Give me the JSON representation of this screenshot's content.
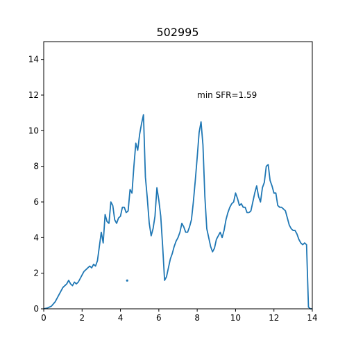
{
  "chart_data": {
    "type": "line",
    "title": "502995",
    "xlabel": "",
    "ylabel": "",
    "xlim": [
      0,
      14
    ],
    "ylim": [
      0,
      15
    ],
    "xticks": [
      "0",
      "2",
      "4",
      "6",
      "8",
      "10",
      "12",
      "14"
    ],
    "yticks": [
      "0",
      "2",
      "4",
      "6",
      "8",
      "10",
      "12",
      "14"
    ],
    "grid": false,
    "annotation": {
      "text": "min SFR=1.59",
      "x": 8.0,
      "y": 12.0
    },
    "marker_point": {
      "x": 4.35,
      "y": 1.59
    },
    "line_color": "#1f77b4",
    "series": [
      {
        "x": [
          0.0,
          0.2,
          0.4,
          0.6,
          0.8,
          1.0,
          1.2,
          1.3,
          1.4,
          1.5,
          1.6,
          1.7,
          1.8,
          1.9,
          2.0,
          2.1,
          2.2,
          2.3,
          2.4,
          2.5,
          2.6,
          2.7,
          2.8,
          2.9,
          3.0,
          3.1,
          3.2,
          3.3,
          3.4,
          3.5,
          3.6,
          3.7,
          3.8,
          3.9,
          4.0,
          4.1,
          4.2,
          4.3,
          4.4,
          4.5,
          4.6,
          4.7,
          4.8,
          4.9,
          5.0,
          5.1,
          5.2,
          5.3,
          5.4,
          5.5,
          5.6,
          5.7,
          5.8,
          5.9,
          6.0,
          6.1,
          6.2,
          6.3,
          6.4,
          6.5,
          6.6,
          6.7,
          6.8,
          6.9,
          7.0,
          7.1,
          7.2,
          7.3,
          7.4,
          7.5,
          7.6,
          7.7,
          7.8,
          7.9,
          8.0,
          8.1,
          8.2,
          8.3,
          8.4,
          8.5,
          8.6,
          8.7,
          8.8,
          8.9,
          9.0,
          9.1,
          9.2,
          9.3,
          9.4,
          9.5,
          9.6,
          9.7,
          9.8,
          9.9,
          10.0,
          10.1,
          10.2,
          10.3,
          10.4,
          10.5,
          10.6,
          10.7,
          10.8,
          10.9,
          11.0,
          11.1,
          11.2,
          11.3,
          11.4,
          11.5,
          11.6,
          11.7,
          11.8,
          11.9,
          12.0,
          12.1,
          12.2,
          12.3,
          12.4,
          12.5,
          12.6,
          12.7,
          12.8,
          12.9,
          13.0,
          13.1,
          13.2,
          13.3,
          13.4,
          13.5,
          13.6,
          13.7,
          13.8,
          13.9,
          14.0
        ],
        "y": [
          0.0,
          0.05,
          0.15,
          0.4,
          0.8,
          1.2,
          1.4,
          1.6,
          1.4,
          1.3,
          1.5,
          1.4,
          1.5,
          1.7,
          1.9,
          2.1,
          2.2,
          2.3,
          2.4,
          2.3,
          2.5,
          2.4,
          2.7,
          3.5,
          4.3,
          3.7,
          5.3,
          4.9,
          4.8,
          6.0,
          5.8,
          5.0,
          4.8,
          5.1,
          5.2,
          5.7,
          5.7,
          5.4,
          5.5,
          6.7,
          6.5,
          8.0,
          9.3,
          8.9,
          9.8,
          10.4,
          10.9,
          7.4,
          6.2,
          4.8,
          4.1,
          4.5,
          5.2,
          6.8,
          6.1,
          5.2,
          3.5,
          1.6,
          1.8,
          2.3,
          2.8,
          3.1,
          3.5,
          3.8,
          4.0,
          4.3,
          4.8,
          4.6,
          4.3,
          4.3,
          4.6,
          5.0,
          6.0,
          7.2,
          8.5,
          9.9,
          10.5,
          9.2,
          6.3,
          4.5,
          4.0,
          3.5,
          3.2,
          3.4,
          3.9,
          4.1,
          4.3,
          4.0,
          4.4,
          5.0,
          5.4,
          5.7,
          5.9,
          6.0,
          6.5,
          6.2,
          5.8,
          5.9,
          5.7,
          5.7,
          5.4,
          5.4,
          5.5,
          6.0,
          6.5,
          6.9,
          6.3,
          6.0,
          6.8,
          7.1,
          8.0,
          8.1,
          7.2,
          6.9,
          6.5,
          6.5,
          5.8,
          5.7,
          5.7,
          5.6,
          5.5,
          5.1,
          4.7,
          4.5,
          4.4,
          4.4,
          4.2,
          3.9,
          3.7,
          3.6,
          3.7,
          3.6,
          0.1,
          0.0,
          0.0
        ]
      }
    ]
  }
}
